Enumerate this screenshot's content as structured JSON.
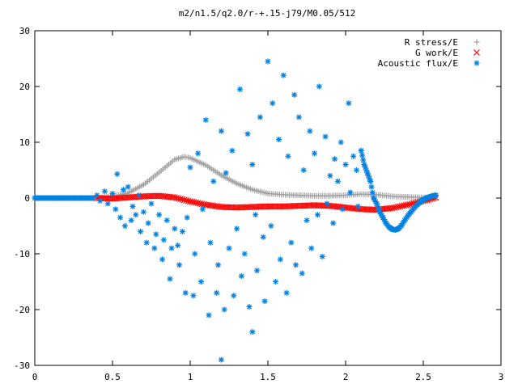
{
  "chart_data": {
    "type": "scatter",
    "title": "m2/n1.5/q2.0/r-+.15-j79/M0.05/512",
    "xlabel": "",
    "ylabel": "",
    "xlim": [
      0,
      3
    ],
    "ylim": [
      -30,
      30
    ],
    "xticks": [
      {
        "value": 0,
        "label": "0"
      },
      {
        "value": 0.5,
        "label": "0.5"
      },
      {
        "value": 1,
        "label": "1"
      },
      {
        "value": 1.5,
        "label": "1.5"
      },
      {
        "value": 2,
        "label": "2"
      },
      {
        "value": 2.5,
        "label": "2.5"
      },
      {
        "value": 3,
        "label": "3"
      }
    ],
    "yticks": [
      {
        "value": -30,
        "label": "-30"
      },
      {
        "value": -20,
        "label": "-20"
      },
      {
        "value": -10,
        "label": "-10"
      },
      {
        "value": 0,
        "label": "0"
      },
      {
        "value": 10,
        "label": "10"
      },
      {
        "value": 20,
        "label": "20"
      },
      {
        "value": 30,
        "label": "30"
      }
    ],
    "grid": false,
    "legend_position": "top-right",
    "series": [
      {
        "name": "R stress/E",
        "marker": "plus",
        "color": "#a0a0a0",
        "points": [
          [
            0.4,
            0.0
          ],
          [
            0.5,
            0.3
          ],
          [
            0.6,
            0.9
          ],
          [
            0.7,
            2.4
          ],
          [
            0.8,
            4.6
          ],
          [
            0.9,
            6.9
          ],
          [
            0.96,
            7.4
          ],
          [
            1.0,
            7.2
          ],
          [
            1.1,
            5.9
          ],
          [
            1.2,
            4.1
          ],
          [
            1.3,
            2.6
          ],
          [
            1.4,
            1.5
          ],
          [
            1.5,
            0.8
          ],
          [
            1.6,
            0.6
          ],
          [
            1.7,
            0.5
          ],
          [
            1.8,
            0.4
          ],
          [
            1.9,
            0.4
          ],
          [
            2.0,
            0.5
          ],
          [
            2.1,
            0.7
          ],
          [
            2.2,
            0.6
          ],
          [
            2.3,
            0.3
          ],
          [
            2.4,
            0.2
          ],
          [
            2.5,
            0.1
          ],
          [
            2.58,
            0.2
          ]
        ]
      },
      {
        "name": "G work/E",
        "marker": "cross",
        "color": "#ff0000",
        "points": [
          [
            0.4,
            0.0
          ],
          [
            0.5,
            -0.1
          ],
          [
            0.6,
            0.1
          ],
          [
            0.7,
            0.3
          ],
          [
            0.8,
            0.4
          ],
          [
            0.9,
            0.1
          ],
          [
            1.0,
            -0.6
          ],
          [
            1.1,
            -1.2
          ],
          [
            1.2,
            -1.6
          ],
          [
            1.3,
            -1.7
          ],
          [
            1.4,
            -1.6
          ],
          [
            1.5,
            -1.5
          ],
          [
            1.6,
            -1.5
          ],
          [
            1.7,
            -1.4
          ],
          [
            1.8,
            -1.3
          ],
          [
            1.9,
            -1.4
          ],
          [
            2.0,
            -1.7
          ],
          [
            2.1,
            -2.0
          ],
          [
            2.2,
            -2.1
          ],
          [
            2.3,
            -1.8
          ],
          [
            2.4,
            -1.2
          ],
          [
            2.5,
            -0.5
          ],
          [
            2.58,
            0.1
          ]
        ]
      },
      {
        "name": "Acoustic flux/E",
        "marker": "star",
        "color": "#0080e0",
        "points": [
          [
            0.0,
            0.0
          ],
          [
            0.05,
            0.0
          ],
          [
            0.1,
            0.0
          ],
          [
            0.15,
            0.0
          ],
          [
            0.2,
            0.0
          ],
          [
            0.25,
            0.0
          ],
          [
            0.3,
            0.0
          ],
          [
            0.35,
            0.0
          ],
          [
            0.4,
            0.5
          ],
          [
            0.42,
            -0.5
          ],
          [
            0.45,
            1.2
          ],
          [
            0.47,
            -1.0
          ],
          [
            0.5,
            0.8
          ],
          [
            0.52,
            -2.0
          ],
          [
            0.53,
            4.3
          ],
          [
            0.55,
            -3.5
          ],
          [
            0.57,
            1.5
          ],
          [
            0.58,
            -5.0
          ],
          [
            0.6,
            2.0
          ],
          [
            0.62,
            -4.0
          ],
          [
            0.63,
            -1.5
          ],
          [
            0.65,
            -3.0
          ],
          [
            0.67,
            0.5
          ],
          [
            0.68,
            -6.0
          ],
          [
            0.7,
            -2.5
          ],
          [
            0.72,
            -8.0
          ],
          [
            0.73,
            -4.5
          ],
          [
            0.75,
            -1.0
          ],
          [
            0.77,
            -9.0
          ],
          [
            0.78,
            -6.5
          ],
          [
            0.8,
            -3.0
          ],
          [
            0.82,
            -11.0
          ],
          [
            0.83,
            -7.5
          ],
          [
            0.85,
            -4.0
          ],
          [
            0.87,
            -14.5
          ],
          [
            0.88,
            -9.0
          ],
          [
            0.9,
            -5.5
          ],
          [
            0.92,
            -8.5
          ],
          [
            0.93,
            -12.0
          ],
          [
            0.95,
            -6.0
          ],
          [
            0.97,
            -17.0
          ],
          [
            0.98,
            -3.5
          ],
          [
            1.0,
            5.5
          ],
          [
            1.02,
            -17.5
          ],
          [
            1.03,
            -10.0
          ],
          [
            1.05,
            8.0
          ],
          [
            1.07,
            -15.0
          ],
          [
            1.08,
            -2.0
          ],
          [
            1.1,
            14.0
          ],
          [
            1.12,
            -21.0
          ],
          [
            1.13,
            -8.0
          ],
          [
            1.15,
            3.0
          ],
          [
            1.17,
            -17.0
          ],
          [
            1.18,
            -12.0
          ],
          [
            1.2,
            -29.0
          ],
          [
            1.2,
            12.0
          ],
          [
            1.22,
            -20.0
          ],
          [
            1.23,
            4.5
          ],
          [
            1.25,
            -9.0
          ],
          [
            1.27,
            8.5
          ],
          [
            1.28,
            -17.5
          ],
          [
            1.3,
            -5.5
          ],
          [
            1.32,
            19.5
          ],
          [
            1.33,
            -14.0
          ],
          [
            1.35,
            -10.0
          ],
          [
            1.37,
            11.5
          ],
          [
            1.38,
            -19.5
          ],
          [
            1.4,
            -24.0
          ],
          [
            1.4,
            6.0
          ],
          [
            1.42,
            -3.0
          ],
          [
            1.43,
            -13.0
          ],
          [
            1.45,
            14.5
          ],
          [
            1.47,
            -7.0
          ],
          [
            1.48,
            -18.5
          ],
          [
            1.5,
            24.5
          ],
          [
            1.52,
            -5.0
          ],
          [
            1.53,
            17.0
          ],
          [
            1.55,
            -15.0
          ],
          [
            1.57,
            10.5
          ],
          [
            1.58,
            -11.0
          ],
          [
            1.6,
            22.0
          ],
          [
            1.62,
            -17.0
          ],
          [
            1.63,
            7.5
          ],
          [
            1.65,
            -8.0
          ],
          [
            1.67,
            18.5
          ],
          [
            1.68,
            -12.0
          ],
          [
            1.7,
            14.5
          ],
          [
            1.72,
            -13.5
          ],
          [
            1.73,
            5.0
          ],
          [
            1.75,
            -4.0
          ],
          [
            1.77,
            12.0
          ],
          [
            1.78,
            -9.0
          ],
          [
            1.8,
            8.0
          ],
          [
            1.82,
            -3.0
          ],
          [
            1.83,
            20.0
          ],
          [
            1.85,
            -10.5
          ],
          [
            1.87,
            11.0
          ],
          [
            1.88,
            -1.0
          ],
          [
            1.9,
            4.0
          ],
          [
            1.92,
            -4.5
          ],
          [
            1.93,
            7.0
          ],
          [
            1.95,
            3.0
          ],
          [
            1.97,
            10.0
          ],
          [
            1.98,
            -2.0
          ],
          [
            2.0,
            6.0
          ],
          [
            2.02,
            17.0
          ],
          [
            2.03,
            1.0
          ],
          [
            2.05,
            7.5
          ],
          [
            2.07,
            5.0
          ],
          [
            2.08,
            -1.5
          ],
          [
            2.1,
            8.5
          ],
          [
            2.12,
            6.0
          ],
          [
            2.14,
            4.5
          ],
          [
            2.16,
            3.0
          ],
          [
            2.18,
            0.0
          ],
          [
            2.2,
            -1.0
          ],
          [
            2.22,
            -2.5
          ],
          [
            2.24,
            -3.5
          ],
          [
            2.26,
            -4.5
          ],
          [
            2.28,
            -5.2
          ],
          [
            2.3,
            -5.6
          ],
          [
            2.32,
            -5.7
          ],
          [
            2.34,
            -5.5
          ],
          [
            2.36,
            -4.9
          ],
          [
            2.38,
            -4.0
          ],
          [
            2.4,
            -3.2
          ],
          [
            2.42,
            -2.5
          ],
          [
            2.44,
            -1.8
          ],
          [
            2.46,
            -1.2
          ],
          [
            2.48,
            -0.7
          ],
          [
            2.5,
            -0.3
          ],
          [
            2.52,
            0.0
          ],
          [
            2.55,
            0.3
          ],
          [
            2.58,
            0.5
          ]
        ]
      }
    ]
  }
}
